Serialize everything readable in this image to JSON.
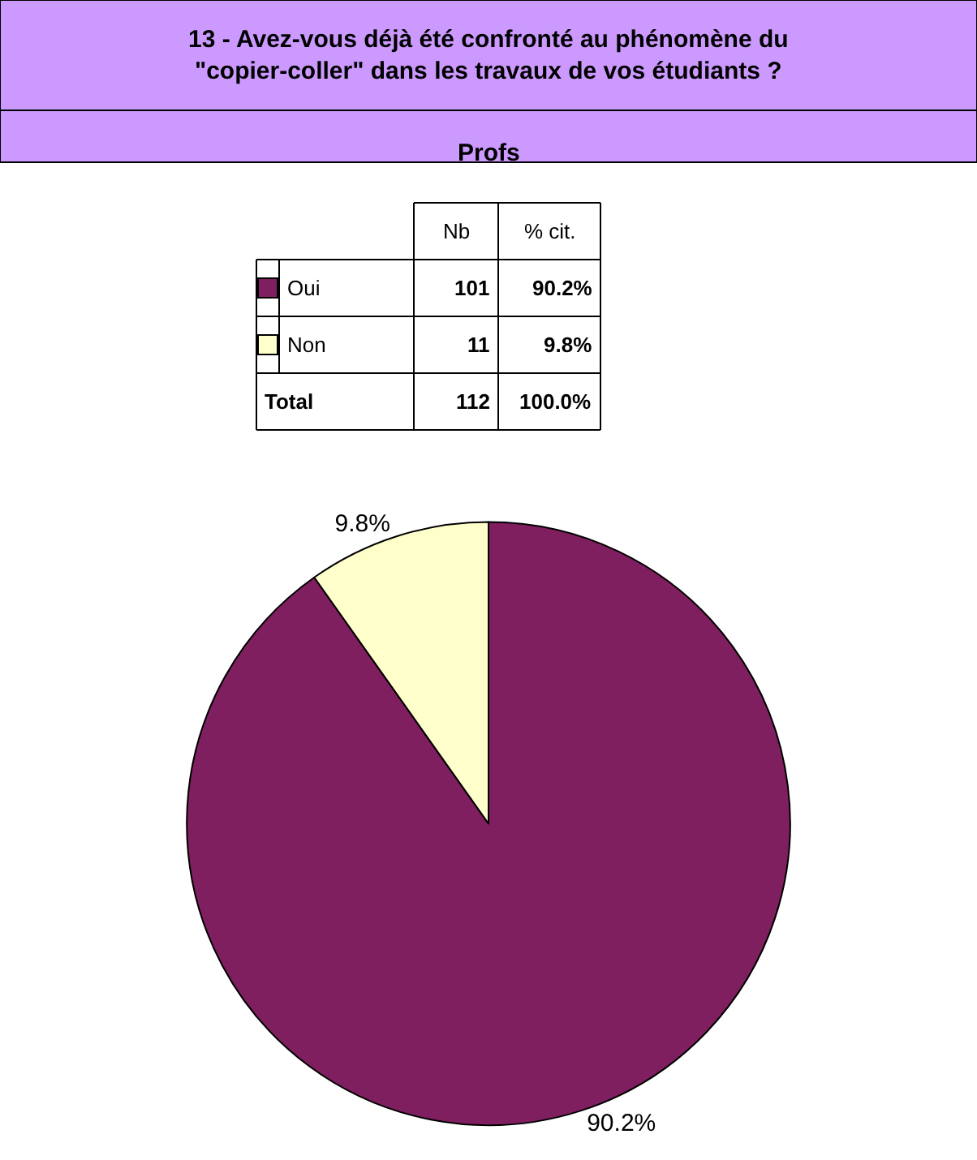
{
  "chart_data": {
    "type": "pie",
    "title": "13 - Avez-vous déjà été confronté au phénomène du\n\"copier-coller\" dans les travaux de vos étudiants ?",
    "subtitle": "Profs",
    "categories": [
      "Oui",
      "Non"
    ],
    "values": [
      90.2,
      9.8
    ],
    "colors": [
      "#7f1f5f",
      "#ffffcc"
    ],
    "value_labels": [
      "90.2%",
      "9.8%"
    ],
    "annotations": [
      "Nb",
      "% cit.",
      "101",
      "11",
      "Total",
      "112",
      "100.0%"
    ],
    "legend": "top"
  }
}
